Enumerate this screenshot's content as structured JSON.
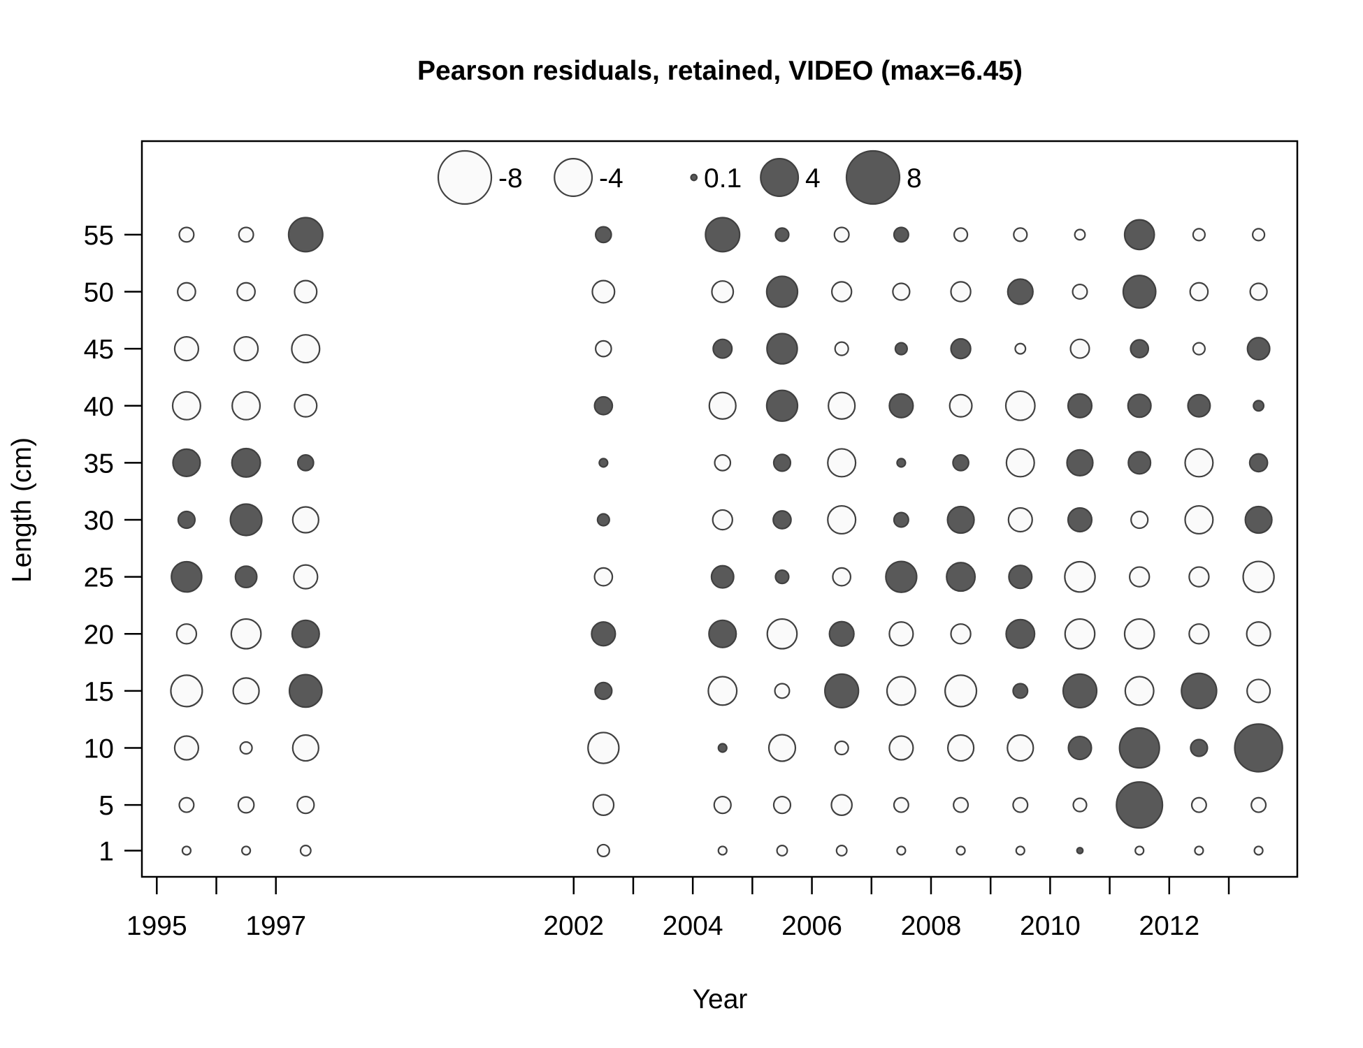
{
  "chart_data": {
    "type": "scatter",
    "subtype": "bubble",
    "title": "Pearson residuals, retained, VIDEO (max=6.45)",
    "xlabel": "Year",
    "ylabel": "Length (cm)",
    "xlim": [
      1994.75,
      2014.15
    ],
    "ylim": [
      -1.3,
      63.2
    ],
    "x_tick_values": [
      1995,
      1996,
      1997,
      2002,
      2003,
      2004,
      2005,
      2006,
      2007,
      2008,
      2009,
      2010,
      2011,
      2012,
      2013
    ],
    "x_tick_labels": [
      "1995",
      "",
      "1997",
      "2002",
      "",
      "2004",
      "",
      "2006",
      "",
      "2008",
      "",
      "2010",
      "",
      "2012",
      ""
    ],
    "y_tick_values": [
      1,
      5,
      10,
      15,
      20,
      25,
      30,
      35,
      40,
      45,
      50,
      55
    ],
    "y_tick_labels": [
      "1",
      "5",
      "10",
      "15",
      "20",
      "25",
      "30",
      "35",
      "40",
      "45",
      "50",
      "55"
    ],
    "legend": {
      "placement": "top-center",
      "entries": [
        {
          "label": "-8",
          "value": -8
        },
        {
          "label": "-4",
          "value": -4
        },
        {
          "label": "0.1",
          "value": 0.1
        },
        {
          "label": "4",
          "value": 4
        },
        {
          "label": "8",
          "value": 8
        }
      ]
    },
    "colors": {
      "positive": "#595959",
      "negative": "#fafafa",
      "stroke": "#404040"
    },
    "years": [
      1995.5,
      1996.5,
      1997.5,
      2002.5,
      2004.5,
      2005.5,
      2006.5,
      2007.5,
      2008.5,
      2009.5,
      2010.5,
      2011.5,
      2012.5,
      2013.5
    ],
    "lengths": [
      55,
      50,
      45,
      40,
      35,
      30,
      25,
      20,
      15,
      10,
      5,
      1
    ],
    "residuals": [
      [
        -0.6,
        -0.6,
        3.3,
        0.7,
        3.3,
        0.5,
        -0.6,
        0.6,
        -0.5,
        -0.5,
        -0.3,
        2.5,
        -0.4,
        -0.4
      ],
      [
        -0.9,
        -0.9,
        -1.4,
        -1.4,
        -1.3,
        2.7,
        -1.1,
        -0.8,
        -1.1,
        1.8,
        -0.6,
        3.0,
        -0.9,
        -0.8
      ],
      [
        -1.6,
        -1.6,
        -2.2,
        -0.7,
        1.0,
        2.6,
        -0.5,
        0.4,
        1.1,
        -0.3,
        -1.0,
        0.9,
        -0.4,
        1.4
      ],
      [
        -2.2,
        -2.2,
        -1.4,
        0.9,
        -2.0,
        2.7,
        -2.0,
        1.6,
        -1.4,
        -2.4,
        1.6,
        1.5,
        1.4,
        0.3
      ],
      [
        2.1,
        2.3,
        0.7,
        0.2,
        -0.7,
        0.8,
        -2.2,
        0.2,
        0.7,
        -2.2,
        1.9,
        1.4,
        -2.2,
        0.9
      ],
      [
        0.8,
        2.8,
        -1.9,
        0.4,
        -1.1,
        0.9,
        -2.2,
        0.6,
        2.0,
        -1.6,
        1.6,
        -0.8,
        -2.2,
        2.0
      ],
      [
        2.6,
        1.3,
        -1.6,
        -0.9,
        1.4,
        0.5,
        -0.9,
        2.7,
        2.3,
        1.5,
        -2.6,
        -1.1,
        -1.1,
        -2.7
      ],
      [
        -1.1,
        -2.5,
        2.1,
        1.6,
        2.1,
        -2.5,
        1.7,
        -1.6,
        -1.1,
        2.3,
        -2.5,
        -2.5,
        -1.1,
        -1.6
      ],
      [
        -2.8,
        -1.9,
        3.0,
        0.8,
        -2.3,
        -0.6,
        3.2,
        -2.3,
        -2.8,
        0.6,
        3.2,
        -2.3,
        3.5,
        -1.5
      ],
      [
        -1.6,
        -0.4,
        -1.9,
        -2.7,
        0.2,
        -2.0,
        -0.5,
        -1.6,
        -1.9,
        -1.9,
        1.5,
        4.5,
        0.8,
        6.45
      ],
      [
        -0.6,
        -0.7,
        -0.8,
        -1.2,
        -0.8,
        -0.8,
        -1.2,
        -0.6,
        -0.6,
        -0.6,
        -0.5,
        6.0,
        -0.6,
        -0.6
      ],
      [
        -0.2,
        -0.2,
        -0.3,
        -0.4,
        -0.2,
        -0.3,
        -0.3,
        -0.2,
        -0.2,
        -0.2,
        0.1,
        -0.2,
        -0.2,
        -0.2
      ]
    ]
  }
}
